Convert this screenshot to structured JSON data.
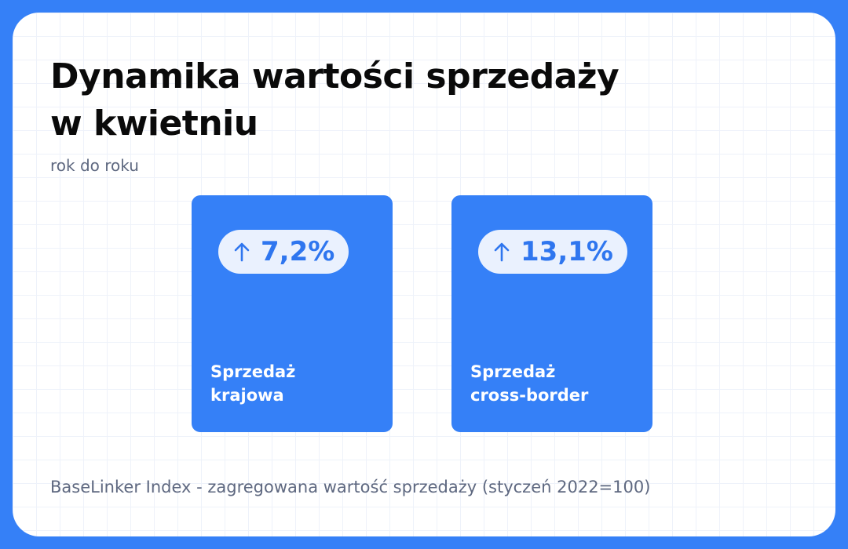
{
  "title": {
    "line1": "Dynamika wartości sprzedaży",
    "line2": "w kwietniu"
  },
  "subtitle": "rok do roku",
  "colors": {
    "background": "#3580f7",
    "card": "#3580f7",
    "pill_bg": "#eaf1fe",
    "pill_text": "#2f76ef"
  },
  "chart_data": {
    "type": "table",
    "title": "Dynamika wartości sprzedaży w kwietniu",
    "subtitle": "rok do roku",
    "items": [
      {
        "label_line1": "Sprzedaż",
        "label_line2": "krajowa",
        "value": 7.2,
        "value_label": "7,2%",
        "direction": "up",
        "icon": "arrow-up-icon"
      },
      {
        "label_line1": "Sprzedaż",
        "label_line2": "cross-border",
        "value": 13.1,
        "value_label": "13,1%",
        "direction": "up",
        "icon": "arrow-up-icon"
      }
    ]
  },
  "footnote": "BaseLinker Index - zagregowana wartość sprzedaży (styczeń 2022=100)"
}
